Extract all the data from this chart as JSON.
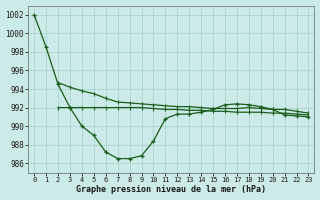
{
  "title": "Graphe pression niveau de la mer (hPa)",
  "background_color": "#cceae7",
  "grid_color": "#aad4d0",
  "line_color": "#1a5c1a",
  "ylim": [
    985,
    1003
  ],
  "yticks": [
    986,
    988,
    990,
    992,
    994,
    996,
    998,
    1000,
    1002
  ],
  "x_labels": [
    "0",
    "1",
    "2",
    "3",
    "4",
    "5",
    "6",
    "7",
    "8",
    "9",
    "10",
    "11",
    "12",
    "13",
    "14",
    "15",
    "16",
    "17",
    "18",
    "19",
    "20",
    "21",
    "22",
    "23"
  ],
  "series1_x": [
    0,
    1,
    2,
    3,
    4,
    5,
    6,
    7,
    8,
    9,
    10,
    11,
    12,
    13,
    14,
    15,
    16,
    17,
    18,
    19,
    20,
    21,
    22,
    23
  ],
  "series1_y": [
    1002.0,
    998.5,
    994.5,
    992.0,
    990.0,
    989.0,
    987.2,
    986.5,
    986.5,
    986.8,
    988.4,
    990.8,
    991.3,
    991.3,
    991.5,
    991.8,
    992.3,
    992.4,
    992.3,
    992.1,
    991.8,
    991.2,
    991.1,
    991.0
  ],
  "series2_x": [
    2,
    3,
    4,
    5,
    6,
    7,
    8,
    9,
    10,
    11,
    12,
    13,
    14,
    15,
    16,
    17,
    18,
    19,
    20,
    21,
    22,
    23
  ],
  "series2_y": [
    994.7,
    994.2,
    993.8,
    993.5,
    993.0,
    992.6,
    992.5,
    992.4,
    992.3,
    992.2,
    992.1,
    992.1,
    992.0,
    991.9,
    991.9,
    991.9,
    992.0,
    991.9,
    991.8,
    991.8,
    991.6,
    991.4
  ],
  "series3_x": [
    2,
    3,
    4,
    5,
    6,
    7,
    8,
    9,
    10,
    11,
    12,
    13,
    14,
    15,
    16,
    17,
    18,
    19,
    20,
    21,
    22,
    23
  ],
  "series3_y": [
    992.0,
    992.0,
    992.0,
    992.0,
    992.0,
    992.0,
    992.0,
    992.0,
    991.9,
    991.8,
    991.8,
    991.7,
    991.7,
    991.6,
    991.6,
    991.5,
    991.5,
    991.5,
    991.4,
    991.4,
    991.3,
    991.2
  ]
}
